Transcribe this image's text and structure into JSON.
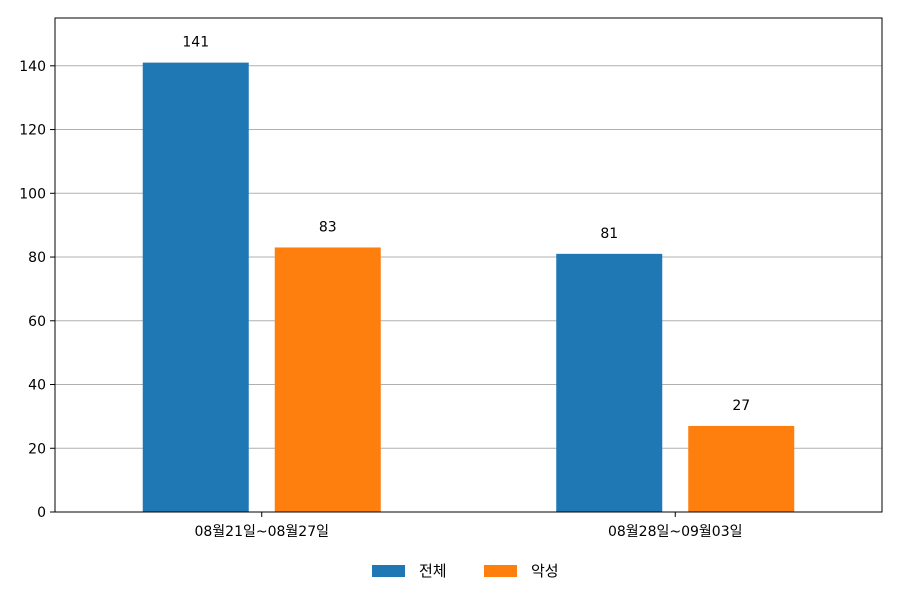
{
  "chart_data": {
    "type": "bar",
    "title": "",
    "xlabel": "",
    "ylabel": "",
    "categories": [
      "08월21일~08월27일",
      "08월28일~09월03일"
    ],
    "series": [
      {
        "name": "전체",
        "color": "#1f77b4",
        "values": [
          141,
          81
        ]
      },
      {
        "name": "악성",
        "color": "#ff7f0e",
        "values": [
          83,
          27
        ]
      }
    ],
    "ylim": [
      0,
      155
    ],
    "yticks": [
      0,
      20,
      40,
      60,
      80,
      100,
      120,
      140
    ],
    "grid": true,
    "legend": "bottom-center",
    "show_data_labels": true
  }
}
